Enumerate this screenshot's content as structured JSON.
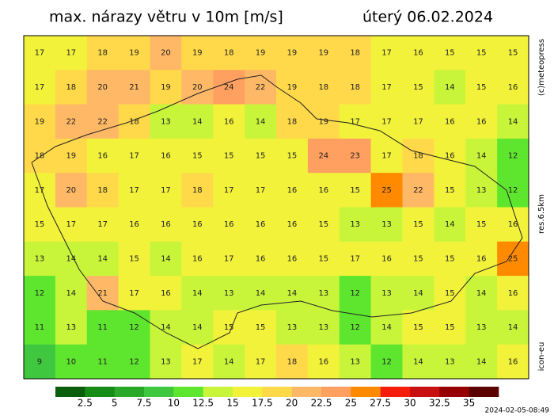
{
  "header": {
    "title": "max. nárazy větru v 10m [m/s]",
    "date": "úterý 06.02.2024"
  },
  "side": {
    "copyright": "(c)meteopress",
    "resolution": "res.6.5km",
    "model": "icon-eu"
  },
  "timestamp": "2024-02-05-08:49",
  "map": {
    "rows": [
      [
        17,
        17,
        18,
        19,
        20,
        19,
        18,
        19,
        19,
        19,
        18,
        17,
        16,
        15,
        15,
        15
      ],
      [
        17,
        18,
        20,
        21,
        19,
        20,
        24,
        22,
        19,
        18,
        18,
        17,
        15,
        14,
        15,
        16
      ],
      [
        19,
        22,
        22,
        18,
        13,
        14,
        16,
        14,
        18,
        19,
        17,
        17,
        17,
        16,
        16,
        14
      ],
      [
        18,
        19,
        16,
        17,
        16,
        15,
        15,
        15,
        15,
        24,
        23,
        17,
        18,
        16,
        14,
        12
      ],
      [
        17,
        20,
        18,
        17,
        17,
        18,
        17,
        17,
        16,
        16,
        15,
        25,
        22,
        15,
        13,
        12
      ],
      [
        15,
        17,
        17,
        16,
        16,
        16,
        16,
        16,
        16,
        15,
        13,
        13,
        15,
        14,
        15,
        16
      ],
      [
        13,
        14,
        14,
        15,
        14,
        16,
        17,
        16,
        16,
        15,
        17,
        16,
        15,
        15,
        16,
        25
      ],
      [
        12,
        14,
        21,
        17,
        16,
        14,
        13,
        14,
        14,
        13,
        12,
        13,
        14,
        15,
        14,
        16
      ],
      [
        11,
        13,
        11,
        12,
        14,
        14,
        15,
        15,
        13,
        13,
        12,
        14,
        15,
        15,
        13,
        14
      ],
      [
        9,
        10,
        11,
        12,
        13,
        17,
        14,
        17,
        18,
        16,
        13,
        12,
        14,
        13,
        14,
        16
      ]
    ]
  },
  "legend": {
    "boundaries": [
      2.5,
      5,
      7.5,
      10,
      12.5,
      15,
      17.5,
      20,
      22.5,
      25,
      27.5,
      30,
      32.5,
      35
    ],
    "colors": [
      "#0b5e0b",
      "#168c16",
      "#2aa82a",
      "#3fc83f",
      "#5ee62e",
      "#c8f53a",
      "#f2f23a",
      "#ffd94a",
      "#ffb866",
      "#ffa060",
      "#ff8a00",
      "#f51e0a",
      "#c81010",
      "#960000",
      "#5a0000"
    ]
  }
}
